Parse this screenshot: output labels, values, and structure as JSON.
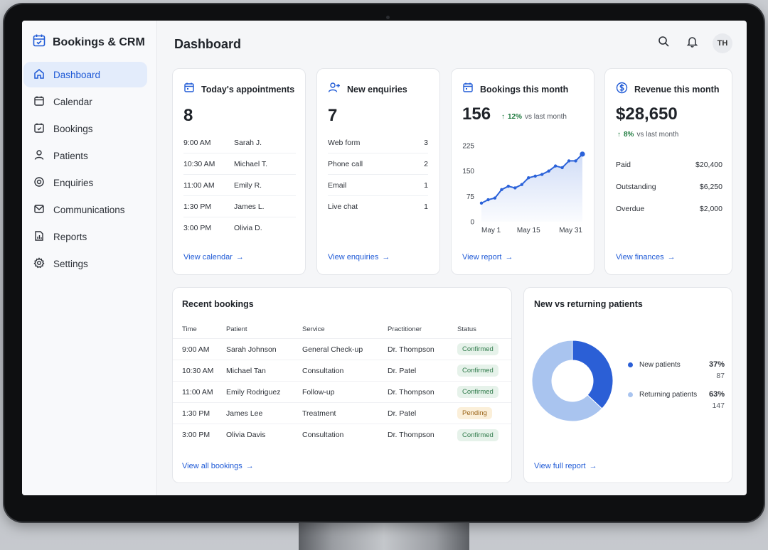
{
  "app": {
    "title": "Bookings & CRM"
  },
  "sidebar": {
    "items": [
      {
        "label": "Dashboard",
        "icon": "home-icon",
        "active": true
      },
      {
        "label": "Calendar",
        "icon": "calendar-icon"
      },
      {
        "label": "Bookings",
        "icon": "booking-icon"
      },
      {
        "label": "Patients",
        "icon": "person-icon"
      },
      {
        "label": "Enquiries",
        "icon": "target-icon"
      },
      {
        "label": "Communications",
        "icon": "mail-icon"
      },
      {
        "label": "Reports",
        "icon": "report-icon"
      },
      {
        "label": "Settings",
        "icon": "gear-icon"
      }
    ]
  },
  "header": {
    "title": "Dashboard",
    "avatar_initials": "TH"
  },
  "appointments": {
    "title": "Today's appointments",
    "count": "8",
    "rows": [
      {
        "time": "9:00 AM",
        "name": "Sarah J."
      },
      {
        "time": "10:30 AM",
        "name": "Michael T."
      },
      {
        "time": "11:00 AM",
        "name": "Emily R."
      },
      {
        "time": "1:30 PM",
        "name": "James L."
      },
      {
        "time": "3:00 PM",
        "name": "Olivia D."
      }
    ],
    "link": "View calendar"
  },
  "enquiries": {
    "title": "New enquiries",
    "count": "7",
    "rows": [
      {
        "source": "Web form",
        "count": "3"
      },
      {
        "source": "Phone call",
        "count": "2"
      },
      {
        "source": "Email",
        "count": "1"
      },
      {
        "source": "Live chat",
        "count": "1"
      }
    ],
    "link": "View enquiries"
  },
  "bookings_month": {
    "title": "Bookings this month",
    "count": "156",
    "trend_pct": "12%",
    "trend_text": "vs last month",
    "link": "View report"
  },
  "revenue": {
    "title": "Revenue this month",
    "amount": "$28,650",
    "trend_pct": "8%",
    "trend_text": "vs last month",
    "rows": [
      {
        "label": "Paid",
        "value": "$20,400"
      },
      {
        "label": "Outstanding",
        "value": "$6,250"
      },
      {
        "label": "Overdue",
        "value": "$2,000"
      }
    ],
    "link": "View finances"
  },
  "recent_bookings": {
    "title": "Recent bookings",
    "columns": [
      "Time",
      "Patient",
      "Service",
      "Practitioner",
      "Status"
    ],
    "rows": [
      {
        "time": "9:00 AM",
        "patient": "Sarah Johnson",
        "service": "General Check-up",
        "practitioner": "Dr. Thompson",
        "status": "Confirmed"
      },
      {
        "time": "10:30 AM",
        "patient": "Michael Tan",
        "service": "Consultation",
        "practitioner": "Dr. Patel",
        "status": "Confirmed"
      },
      {
        "time": "11:00 AM",
        "patient": "Emily Rodriguez",
        "service": "Follow-up",
        "practitioner": "Dr. Thompson",
        "status": "Confirmed"
      },
      {
        "time": "1:30 PM",
        "patient": "James Lee",
        "service": "Treatment",
        "practitioner": "Dr. Patel",
        "status": "Pending"
      },
      {
        "time": "3:00 PM",
        "patient": "Olivia Davis",
        "service": "Consultation",
        "practitioner": "Dr. Thompson",
        "status": "Confirmed"
      }
    ],
    "link": "View all bookings"
  },
  "patients_split": {
    "title": "New vs returning patients",
    "link": "View full report"
  },
  "colors": {
    "accent": "#1f5ad6",
    "chart_line": "#2b62d9",
    "new_patients": "#2b5fd6",
    "returning_patients": "#a9c4ef"
  },
  "chart_data": [
    {
      "type": "area",
      "title": "",
      "xlabel": "",
      "ylabel": "",
      "x_ticks": [
        "May 1",
        "May 15",
        "May 31"
      ],
      "y_ticks": [
        0,
        75,
        150,
        225
      ],
      "ylim": [
        0,
        225
      ],
      "grid": false,
      "x": [
        1,
        3,
        5,
        7,
        9,
        11,
        13,
        15,
        17,
        19,
        21,
        23,
        25,
        27,
        29,
        31
      ],
      "values": [
        55,
        65,
        70,
        95,
        105,
        100,
        110,
        130,
        135,
        140,
        150,
        165,
        160,
        180,
        180,
        200
      ]
    },
    {
      "type": "pie",
      "title": "",
      "donut": true,
      "legend": "right",
      "slices": [
        {
          "name": "New patients",
          "pct": 37,
          "count": 87
        },
        {
          "name": "Returning patients",
          "pct": 63,
          "count": 147
        }
      ]
    }
  ]
}
